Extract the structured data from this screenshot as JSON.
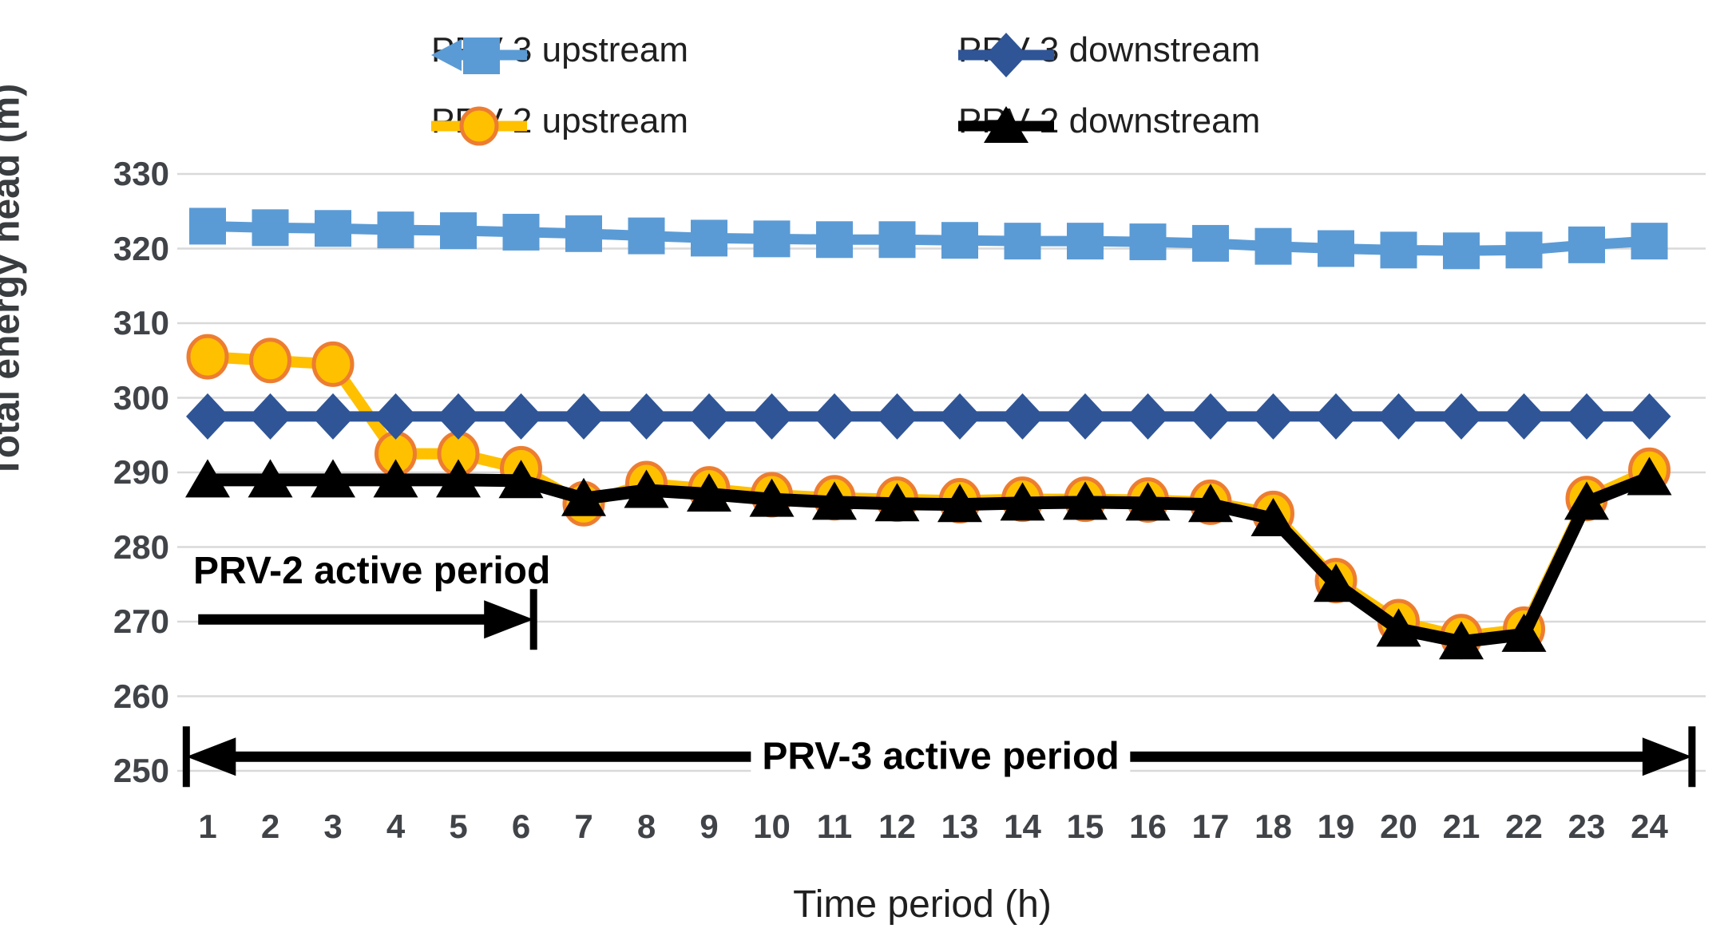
{
  "accent_colors": {
    "prv3_upstream": "#5B9BD5",
    "prv3_downstream": "#2F5597",
    "prv2_upstream_fill": "#FFC000",
    "prv2_upstream_stroke": "#ED7D31",
    "prv2_downstream": "#000000",
    "gridline": "#D9D9D9",
    "tick_text": "#404347"
  },
  "legend": [
    {
      "label": "PRV-3 upstream",
      "glyph": "square-with-left-arrow",
      "color": "#5B9BD5"
    },
    {
      "label": "PRV-3 downstream",
      "glyph": "diamond-line",
      "color": "#2F5597"
    },
    {
      "label": "PRV-2 upstream",
      "glyph": "circle-line",
      "color": "#FFC000"
    },
    {
      "label": "PRV-2 downstream",
      "glyph": "triangle-line",
      "color": "#000000"
    }
  ],
  "chart_data": {
    "type": "line",
    "title": "",
    "xlabel": "Time period (h)",
    "ylabel": "Total energy head (m)",
    "x": [
      1,
      2,
      3,
      4,
      5,
      6,
      7,
      8,
      9,
      10,
      11,
      12,
      13,
      14,
      15,
      16,
      17,
      18,
      19,
      20,
      21,
      22,
      23,
      24
    ],
    "xlim": [
      0.5,
      24.9
    ],
    "ylim": [
      250,
      330
    ],
    "ytick_step": 10,
    "yticks": [
      250,
      260,
      270,
      280,
      290,
      300,
      310,
      320,
      330
    ],
    "grid": "horizontal",
    "series": [
      {
        "name": "PRV-3 upstream",
        "marker": "square",
        "color": "#5B9BD5",
        "values": [
          323,
          322.8,
          322.7,
          322.5,
          322.4,
          322.2,
          322,
          321.7,
          321.4,
          321.3,
          321.2,
          321.2,
          321.1,
          321,
          321,
          320.9,
          320.7,
          320.3,
          320,
          319.8,
          319.7,
          319.8,
          320.5,
          321
        ]
      },
      {
        "name": "PRV-2 upstream",
        "marker": "circle",
        "color": "#FFC000",
        "marker_stroke": "#ED7D31",
        "values": [
          305.5,
          305,
          304.5,
          292.5,
          292.5,
          290.5,
          285.8,
          288.5,
          287.8,
          287,
          286.6,
          286.4,
          286.2,
          286.4,
          286.4,
          286.3,
          286,
          284.5,
          275.5,
          270,
          268,
          269,
          286.5,
          290.3
        ]
      },
      {
        "name": "PRV-3 downstream",
        "marker": "diamond",
        "color": "#2F5597",
        "values": [
          297.5,
          297.5,
          297.5,
          297.5,
          297.5,
          297.5,
          297.5,
          297.5,
          297.5,
          297.5,
          297.5,
          297.5,
          297.5,
          297.5,
          297.5,
          297.5,
          297.5,
          297.5,
          297.5,
          297.5,
          297.5,
          297.5,
          297.5,
          297.5
        ]
      },
      {
        "name": "PRV-2 downstream",
        "marker": "triangle",
        "color": "#000000",
        "values": [
          289,
          289,
          289,
          289,
          289,
          288.9,
          286.5,
          287.6,
          287.1,
          286.4,
          286,
          285.8,
          285.7,
          285.9,
          286,
          285.9,
          285.7,
          283.8,
          275,
          269,
          267.3,
          268.3,
          286,
          289.3
        ]
      }
    ],
    "annotations": [
      {
        "label": "PRV-2 active period",
        "t_from": 0.85,
        "t_to": 6.2,
        "value": 270.3,
        "arrows": "right",
        "label_t": 0.8,
        "label_value": 277.8,
        "label_align": "left"
      },
      {
        "label": "PRV-3 active period",
        "t_from": 0.66,
        "t_to": 24.68,
        "value": 251.9,
        "arrows": "both",
        "label_t": 12.7,
        "label_value": 251.9,
        "label_align": "center"
      }
    ],
    "legend_position": "top"
  }
}
